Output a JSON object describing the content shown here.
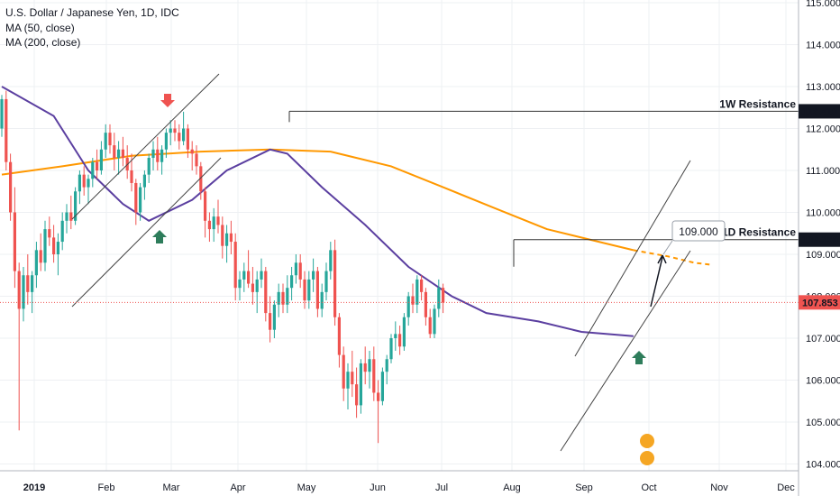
{
  "chart_data": {
    "type": "candlestick",
    "title": "U.S. Dollar / Japanese Yen, 1D, IDC",
    "legend": [
      "MA (50, close)",
      "MA (200, close)"
    ],
    "x_ticks": [
      "2019",
      "Feb",
      "Mar",
      "Apr",
      "May",
      "Jun",
      "Jul",
      "Aug",
      "Sep",
      "Oct",
      "Nov",
      "Dec"
    ],
    "y_ticks": [
      "115.000",
      "114.000",
      "113.000",
      "112.000",
      "111.000",
      "110.000",
      "109.000",
      "108.000",
      "107.000",
      "106.000",
      "105.000",
      "104.000"
    ],
    "ylim": [
      103.8,
      115.1
    ],
    "current_price": "107.853",
    "resistance_1w": {
      "label": "1W Resistance",
      "value": "112.410"
    },
    "resistance_1d": {
      "label": "1D Resistance",
      "value": "109.350"
    },
    "target": {
      "value": "109.000"
    },
    "ma50_color": "#5b3fa0",
    "ma200_color": "#ff9800",
    "up_color": "#26a69a",
    "down_color": "#ef5350",
    "arrow_down_color": "#ef5350",
    "arrow_up_color": "#2e7d5b",
    "ohlc": [
      [
        112.0,
        112.8,
        111.8,
        112.7
      ],
      [
        112.7,
        112.9,
        111.0,
        111.2
      ],
      [
        111.2,
        111.4,
        109.8,
        110.0
      ],
      [
        110.0,
        110.6,
        108.2,
        108.6
      ],
      [
        108.6,
        108.8,
        104.8,
        107.7
      ],
      [
        107.7,
        108.7,
        107.4,
        108.5
      ],
      [
        108.5,
        109.0,
        107.8,
        108.1
      ],
      [
        108.1,
        108.6,
        107.6,
        108.5
      ],
      [
        108.5,
        109.3,
        108.2,
        109.1
      ],
      [
        109.1,
        109.5,
        108.6,
        108.8
      ],
      [
        108.8,
        109.8,
        108.6,
        109.6
      ],
      [
        109.6,
        109.9,
        109.2,
        109.4
      ],
      [
        109.4,
        109.7,
        108.8,
        109.0
      ],
      [
        109.0,
        109.5,
        108.5,
        109.3
      ],
      [
        109.3,
        110.0,
        109.1,
        109.8
      ],
      [
        109.8,
        110.2,
        109.5,
        110.0
      ],
      [
        110.0,
        110.4,
        109.6,
        109.8
      ],
      [
        109.8,
        110.6,
        109.7,
        110.5
      ],
      [
        110.5,
        111.0,
        110.2,
        110.9
      ],
      [
        110.9,
        111.1,
        110.4,
        110.6
      ],
      [
        110.6,
        110.9,
        110.2,
        110.8
      ],
      [
        110.8,
        111.3,
        110.6,
        111.2
      ],
      [
        111.2,
        111.5,
        110.8,
        111.0
      ],
      [
        111.0,
        111.7,
        110.9,
        111.5
      ],
      [
        111.5,
        112.1,
        111.3,
        111.9
      ],
      [
        111.9,
        112.1,
        111.4,
        111.6
      ],
      [
        111.6,
        111.9,
        111.0,
        111.3
      ],
      [
        111.3,
        111.7,
        110.9,
        111.5
      ],
      [
        111.5,
        111.8,
        111.1,
        111.3
      ],
      [
        111.3,
        111.6,
        110.8,
        111.0
      ],
      [
        111.0,
        111.4,
        110.5,
        110.7
      ],
      [
        110.7,
        110.8,
        109.7,
        110.0
      ],
      [
        110.0,
        110.7,
        109.8,
        110.6
      ],
      [
        110.6,
        111.0,
        110.3,
        110.9
      ],
      [
        110.9,
        111.4,
        110.7,
        111.3
      ],
      [
        111.3,
        111.7,
        111.0,
        111.5
      ],
      [
        111.5,
        111.8,
        111.0,
        111.2
      ],
      [
        111.2,
        111.6,
        110.9,
        111.5
      ],
      [
        111.5,
        112.0,
        111.3,
        111.9
      ],
      [
        111.9,
        112.2,
        111.6,
        112.0
      ],
      [
        112.0,
        112.2,
        111.7,
        111.9
      ],
      [
        111.9,
        112.1,
        111.5,
        111.7
      ],
      [
        111.7,
        112.4,
        111.6,
        112.0
      ],
      [
        112.0,
        112.1,
        111.3,
        111.5
      ],
      [
        111.5,
        111.7,
        111.0,
        111.4
      ],
      [
        111.4,
        111.6,
        110.9,
        111.1
      ],
      [
        111.1,
        111.2,
        110.3,
        110.5
      ],
      [
        110.5,
        110.6,
        109.4,
        109.8
      ],
      [
        109.8,
        110.0,
        109.3,
        109.6
      ],
      [
        109.6,
        110.1,
        109.3,
        109.9
      ],
      [
        109.9,
        110.3,
        109.5,
        109.7
      ],
      [
        109.7,
        109.9,
        108.9,
        109.2
      ],
      [
        109.2,
        109.7,
        108.8,
        109.5
      ],
      [
        109.5,
        109.8,
        109.0,
        109.3
      ],
      [
        109.3,
        109.5,
        107.9,
        108.2
      ],
      [
        108.2,
        108.6,
        107.9,
        108.4
      ],
      [
        108.4,
        108.8,
        108.1,
        108.6
      ],
      [
        108.6,
        109.1,
        108.2,
        108.3
      ],
      [
        108.3,
        108.7,
        107.8,
        108.1
      ],
      [
        108.1,
        108.6,
        107.6,
        108.4
      ],
      [
        108.4,
        108.9,
        108.2,
        108.6
      ],
      [
        108.6,
        108.7,
        107.4,
        107.6
      ],
      [
        107.6,
        108.0,
        106.9,
        107.2
      ],
      [
        107.2,
        107.9,
        107.0,
        107.8
      ],
      [
        107.8,
        108.3,
        107.5,
        108.1
      ],
      [
        108.1,
        108.3,
        107.6,
        107.8
      ],
      [
        107.8,
        108.5,
        107.6,
        108.2
      ],
      [
        108.2,
        108.7,
        107.9,
        108.5
      ],
      [
        108.5,
        109.0,
        108.3,
        108.8
      ],
      [
        108.8,
        109.0,
        108.2,
        108.4
      ],
      [
        108.4,
        108.6,
        107.7,
        107.9
      ],
      [
        107.9,
        108.6,
        107.7,
        108.4
      ],
      [
        108.4,
        108.9,
        108.1,
        108.6
      ],
      [
        108.6,
        108.7,
        107.5,
        107.7
      ],
      [
        107.7,
        108.3,
        107.5,
        108.1
      ],
      [
        108.1,
        108.8,
        107.9,
        108.6
      ],
      [
        108.6,
        109.3,
        108.4,
        109.1
      ],
      [
        109.1,
        109.35,
        107.3,
        107.5
      ],
      [
        107.5,
        107.6,
        106.3,
        106.6
      ],
      [
        106.6,
        106.8,
        105.5,
        105.8
      ],
      [
        105.8,
        106.4,
        105.3,
        106.2
      ],
      [
        106.2,
        106.7,
        105.6,
        105.9
      ],
      [
        105.9,
        106.3,
        105.1,
        105.4
      ],
      [
        105.4,
        106.5,
        105.2,
        106.4
      ],
      [
        106.4,
        106.8,
        105.9,
        106.2
      ],
      [
        106.2,
        106.7,
        105.8,
        106.5
      ],
      [
        106.5,
        106.8,
        105.5,
        105.7
      ],
      [
        105.7,
        106.0,
        104.5,
        105.5
      ],
      [
        105.5,
        106.3,
        105.4,
        106.2
      ],
      [
        106.2,
        106.6,
        105.9,
        106.5
      ],
      [
        106.5,
        107.1,
        106.4,
        107.0
      ],
      [
        107.0,
        107.4,
        106.7,
        107.1
      ],
      [
        107.1,
        107.3,
        106.6,
        106.8
      ],
      [
        106.8,
        107.6,
        106.7,
        107.5
      ],
      [
        107.5,
        108.1,
        107.3,
        108.0
      ],
      [
        108.0,
        108.3,
        107.6,
        107.8
      ],
      [
        107.8,
        108.5,
        107.6,
        108.4
      ],
      [
        108.4,
        108.5,
        107.9,
        108.1
      ],
      [
        108.1,
        108.2,
        107.3,
        107.5
      ],
      [
        107.5,
        107.7,
        107.0,
        107.1
      ],
      [
        107.1,
        107.8,
        107.0,
        107.7
      ],
      [
        107.7,
        108.4,
        107.5,
        108.2
      ],
      [
        108.2,
        108.3,
        107.6,
        107.85
      ]
    ],
    "ma50": [
      [
        0,
        113.0
      ],
      [
        12,
        112.3
      ],
      [
        20,
        111.0
      ],
      [
        28,
        110.2
      ],
      [
        34,
        109.8
      ],
      [
        44,
        110.3
      ],
      [
        52,
        111.0
      ],
      [
        62,
        111.5
      ],
      [
        66,
        111.4
      ],
      [
        74,
        110.6
      ],
      [
        84,
        109.7
      ],
      [
        94,
        108.7
      ],
      [
        104,
        108.0
      ],
      [
        112,
        107.6
      ],
      [
        124,
        107.4
      ],
      [
        134,
        107.15
      ],
      [
        146,
        107.05
      ]
    ],
    "ma200": [
      [
        0,
        110.9
      ],
      [
        14,
        111.1
      ],
      [
        30,
        111.35
      ],
      [
        46,
        111.45
      ],
      [
        62,
        111.5
      ],
      [
        76,
        111.45
      ],
      [
        90,
        111.1
      ],
      [
        102,
        110.6
      ],
      [
        114,
        110.1
      ],
      [
        126,
        109.6
      ],
      [
        138,
        109.3
      ],
      [
        146,
        109.1
      ]
    ],
    "ma200_projection": [
      [
        146,
        109.1
      ],
      [
        154,
        108.95
      ],
      [
        160,
        108.8
      ],
      [
        164,
        108.75
      ]
    ]
  }
}
